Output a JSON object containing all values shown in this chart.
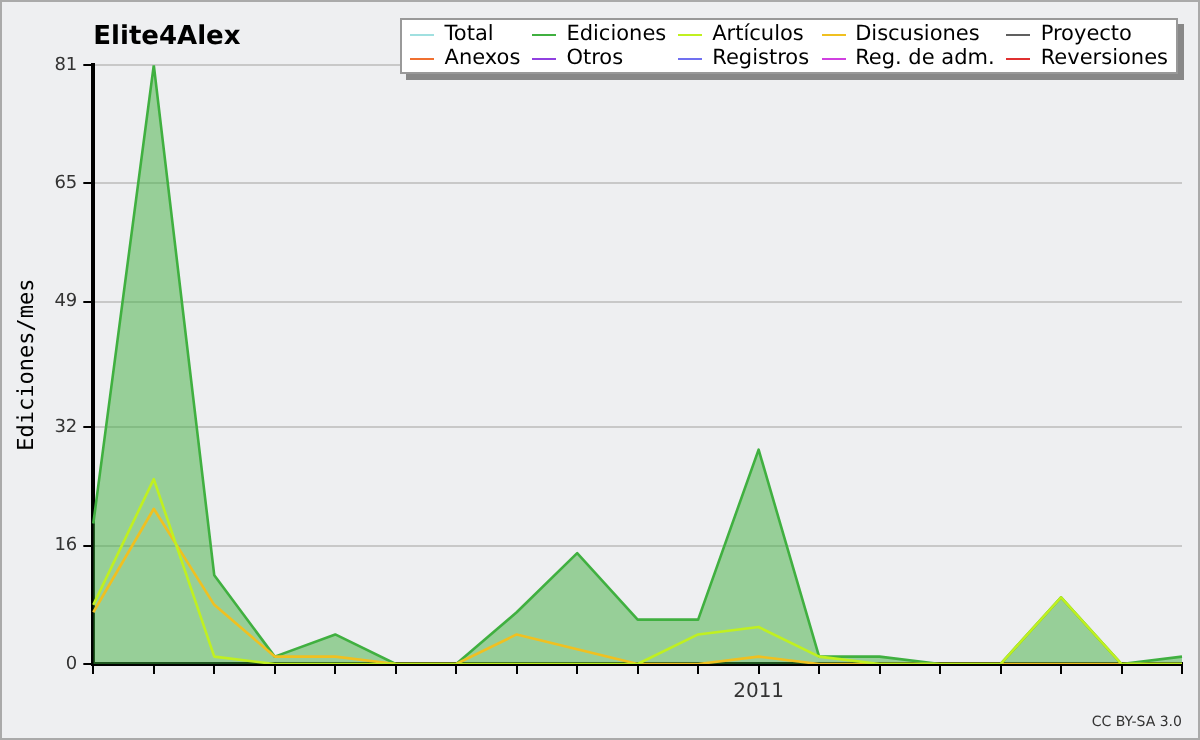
{
  "chart_data": {
    "type": "line",
    "title": "Elite4Alex",
    "ylabel": "Ediciones/mes",
    "categories": [
      null,
      null,
      null,
      null,
      null,
      null,
      null,
      null,
      null,
      null,
      null,
      "2011",
      null,
      null,
      null,
      null,
      null,
      null,
      null
    ],
    "series": [
      {
        "name": "Total",
        "color": "#a0e0e0",
        "values": [
          null,
          null,
          null,
          null,
          null,
          null,
          null,
          null,
          null,
          null,
          null,
          null,
          null,
          null,
          null,
          null,
          null,
          null,
          null
        ]
      },
      {
        "name": "Ediciones",
        "type": "area",
        "color": "#40b040",
        "values": [
          19,
          81,
          12,
          1,
          4,
          0,
          0,
          7,
          15,
          6,
          6,
          29,
          1,
          1,
          0,
          0,
          9,
          0,
          1
        ]
      },
      {
        "name": "Artículos",
        "color": "#c0f020",
        "values": [
          8,
          25,
          1,
          0,
          0,
          0,
          0,
          0,
          0,
          0,
          4,
          5,
          1,
          0,
          0,
          0,
          9,
          0,
          0
        ]
      },
      {
        "name": "Discusiones",
        "color": "#f0c020",
        "values": [
          7,
          21,
          8,
          1,
          1,
          0,
          0,
          4,
          2,
          0,
          0,
          1,
          0,
          0,
          0,
          0,
          0,
          0,
          0
        ]
      },
      {
        "name": "Proyecto",
        "color": "#606060",
        "values": [
          null,
          null,
          null,
          null,
          null,
          null,
          null,
          null,
          null,
          null,
          null,
          null,
          null,
          null,
          null,
          null,
          null,
          null,
          null
        ]
      },
      {
        "name": "Anexos",
        "color": "#f07030",
        "values": [
          null,
          null,
          null,
          null,
          null,
          null,
          null,
          null,
          null,
          null,
          null,
          null,
          null,
          null,
          null,
          null,
          null,
          null,
          null
        ]
      },
      {
        "name": "Otros",
        "color": "#9040e0",
        "values": [
          null,
          null,
          null,
          null,
          null,
          null,
          null,
          null,
          null,
          null,
          null,
          null,
          null,
          null,
          null,
          null,
          null,
          null,
          null
        ]
      },
      {
        "name": "Registros",
        "color": "#7070f0",
        "values": [
          null,
          null,
          null,
          null,
          null,
          null,
          null,
          null,
          null,
          null,
          null,
          null,
          null,
          null,
          null,
          null,
          null,
          null,
          null
        ]
      },
      {
        "name": "Reg. de adm.",
        "color": "#d040e0",
        "values": [
          null,
          null,
          null,
          null,
          null,
          null,
          null,
          null,
          null,
          null,
          null,
          null,
          null,
          null,
          null,
          null,
          null,
          null,
          null
        ]
      },
      {
        "name": "Reversiones",
        "color": "#e03030",
        "values": [
          null,
          null,
          null,
          null,
          null,
          null,
          null,
          null,
          null,
          null,
          null,
          null,
          null,
          null,
          null,
          null,
          null,
          null,
          null
        ]
      }
    ],
    "ylim": [
      0,
      81
    ],
    "yticks": [
      0,
      16,
      32,
      49,
      65,
      81
    ],
    "grid": "y",
    "legend": "top right",
    "marker": "none",
    "line_style": "solid",
    "annotations": [
      "CC BY-SA 3.0"
    ]
  }
}
